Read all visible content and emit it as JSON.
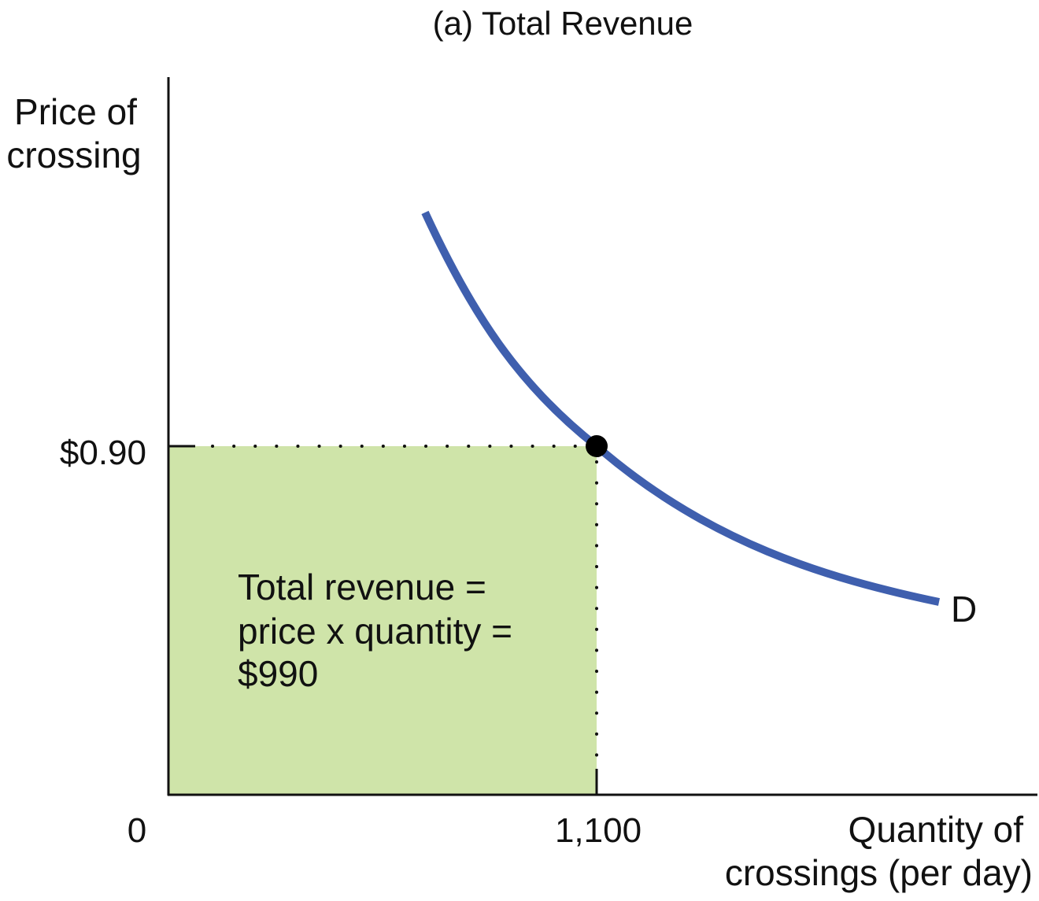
{
  "chart_data": {
    "type": "line",
    "title": "(a) Total Revenue",
    "ylabel": [
      "Price of",
      "crossing"
    ],
    "xlabel": [
      "Quantity of",
      "crossings (per day)"
    ],
    "origin_label": "0",
    "x_tick_label": "1,100",
    "y_tick_label": "$0.90",
    "series": [
      {
        "name": "D",
        "curve": "demand"
      }
    ],
    "point": {
      "x": 1100,
      "y": 0.9
    },
    "shaded_area": {
      "meaning": "total revenue",
      "lines": [
        "Total revenue =",
        "price x quantity =",
        "$990"
      ],
      "value": 990
    },
    "grid": false,
    "legend": "none",
    "colors": {
      "demand_curve": "#3f5fae",
      "revenue_fill": "#cfe4a9",
      "axis": "#111111",
      "point": "#000000"
    }
  }
}
